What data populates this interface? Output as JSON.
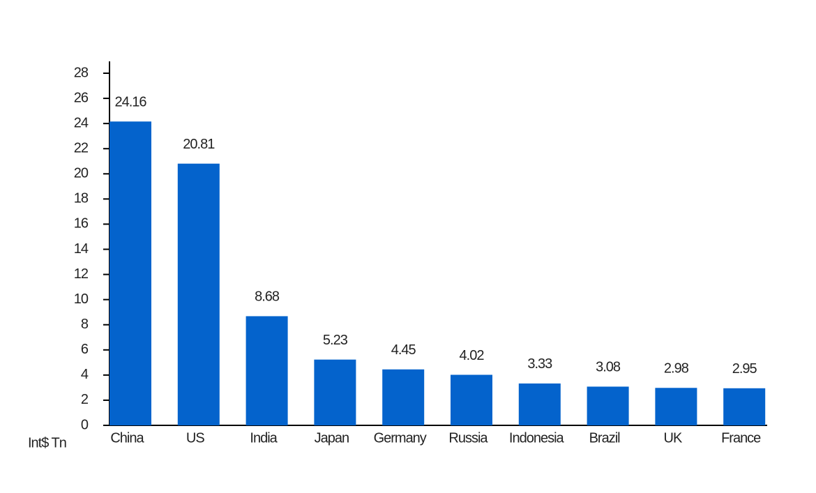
{
  "chart_data": {
    "type": "bar",
    "y_label": "Int$ Tn",
    "categories": [
      "China",
      "US",
      "India",
      "Japan",
      "Germany",
      "Russia",
      "Indonesia",
      "Brazil",
      "UK",
      "France"
    ],
    "values": [
      24.16,
      20.81,
      8.68,
      5.23,
      4.45,
      4.02,
      3.33,
      3.08,
      2.98,
      2.95
    ],
    "color": "#0463cc",
    "ylim": [
      0,
      28
    ],
    "yticks": [
      0,
      2,
      4,
      6,
      8,
      10,
      12,
      14,
      16,
      18,
      20,
      22,
      24,
      26,
      28
    ],
    "grid": false
  }
}
